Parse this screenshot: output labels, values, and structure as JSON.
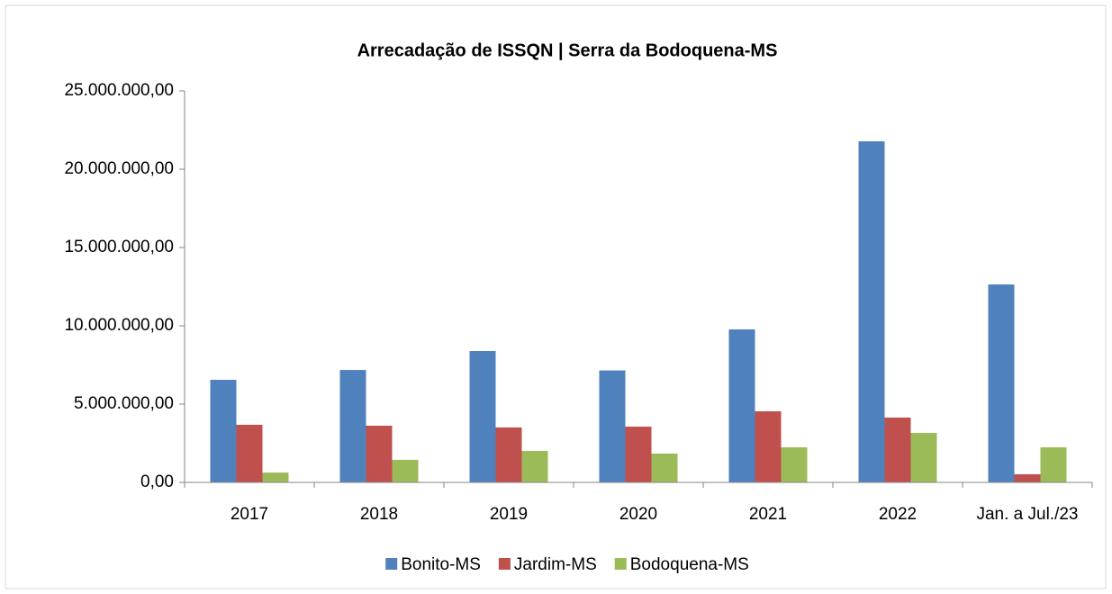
{
  "chart_data": {
    "type": "bar",
    "title": "Arrecadação de ISSQN | Serra da Bodoquena-MS",
    "categories": [
      "2017",
      "2018",
      "2019",
      "2020",
      "2021",
      "2022",
      "Jan. a Jul./23"
    ],
    "series": [
      {
        "name": "Bonito-MS",
        "color": "#4f81bd",
        "values": [
          6550000,
          7180000,
          8390000,
          7150000,
          9770000,
          21780000,
          12640000
        ]
      },
      {
        "name": "Jardim-MS",
        "color": "#c0504d",
        "values": [
          3680000,
          3620000,
          3510000,
          3560000,
          4540000,
          4140000,
          520000
        ]
      },
      {
        "name": "Bodoquena-MS",
        "color": "#9bbb59",
        "values": [
          630000,
          1440000,
          2010000,
          1840000,
          2240000,
          3160000,
          2240000
        ]
      }
    ],
    "ylim": [
      0,
      25000000
    ],
    "yticks": [
      {
        "value": 0,
        "label": "0,00"
      },
      {
        "value": 5000000,
        "label": "5.000.000,00"
      },
      {
        "value": 10000000,
        "label": "10.000.000,00"
      },
      {
        "value": 15000000,
        "label": "15.000.000,00"
      },
      {
        "value": 20000000,
        "label": "20.000.000,00"
      },
      {
        "value": 25000000,
        "label": "25.000.000,00"
      }
    ],
    "grid": false,
    "legend": "bottom"
  }
}
